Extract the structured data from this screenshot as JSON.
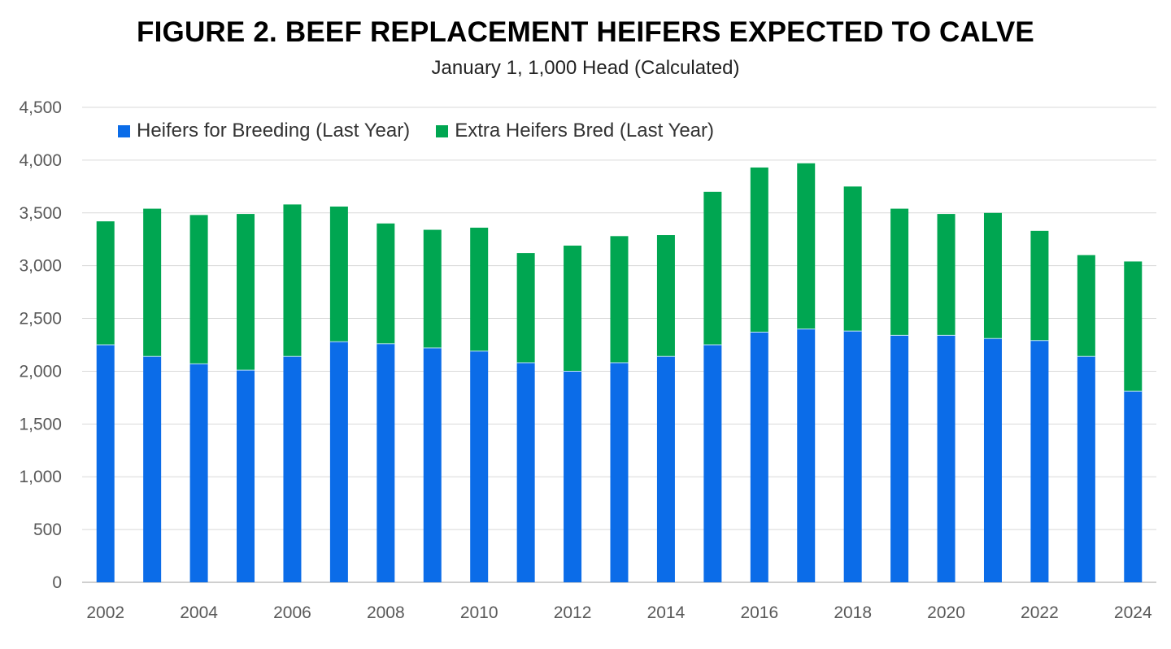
{
  "chart_data": {
    "type": "bar",
    "stacked": true,
    "title": "FIGURE 2.  BEEF REPLACEMENT HEIFERS EXPECTED TO CALVE",
    "subtitle": "January 1, 1,000 Head (Calculated)",
    "xlabel": "",
    "ylabel": "",
    "ylim": [
      0,
      4500
    ],
    "yticks": [
      0,
      500,
      1000,
      1500,
      2000,
      2500,
      3000,
      3500,
      4000,
      4500
    ],
    "ytick_labels": [
      "0",
      "500",
      "1,000",
      "1,500",
      "2,000",
      "2,500",
      "3,000",
      "3,500",
      "4,000",
      "4,500"
    ],
    "grid": "horizontal",
    "legend_position": "top-left",
    "categories": [
      "2002",
      "2003",
      "2004",
      "2005",
      "2006",
      "2007",
      "2008",
      "2009",
      "2010",
      "2011",
      "2012",
      "2013",
      "2014",
      "2015",
      "2016",
      "2017",
      "2018",
      "2019",
      "2020",
      "2021",
      "2022",
      "2023",
      "2024"
    ],
    "xtick_labels": [
      "2002",
      "",
      "2004",
      "",
      "2006",
      "",
      "2008",
      "",
      "2010",
      "",
      "2012",
      "",
      "2014",
      "",
      "2016",
      "",
      "2018",
      "",
      "2020",
      "",
      "2022",
      "",
      "2024"
    ],
    "series": [
      {
        "name": "Heifers for Breeding (Last Year)",
        "color": "#0B6CE8",
        "values": [
          2250,
          2140,
          2070,
          2010,
          2140,
          2280,
          2260,
          2220,
          2190,
          2080,
          2000,
          2080,
          2140,
          2250,
          2370,
          2400,
          2380,
          2340,
          2340,
          2310,
          2290,
          2140,
          1810
        ]
      },
      {
        "name": "Extra Heifers Bred (Last Year)",
        "color": "#00A651",
        "values": [
          1170,
          1400,
          1410,
          1480,
          1440,
          1280,
          1140,
          1120,
          1170,
          1040,
          1190,
          1200,
          1150,
          1450,
          1560,
          1570,
          1370,
          1200,
          1150,
          1190,
          1040,
          960,
          1230
        ]
      }
    ]
  }
}
